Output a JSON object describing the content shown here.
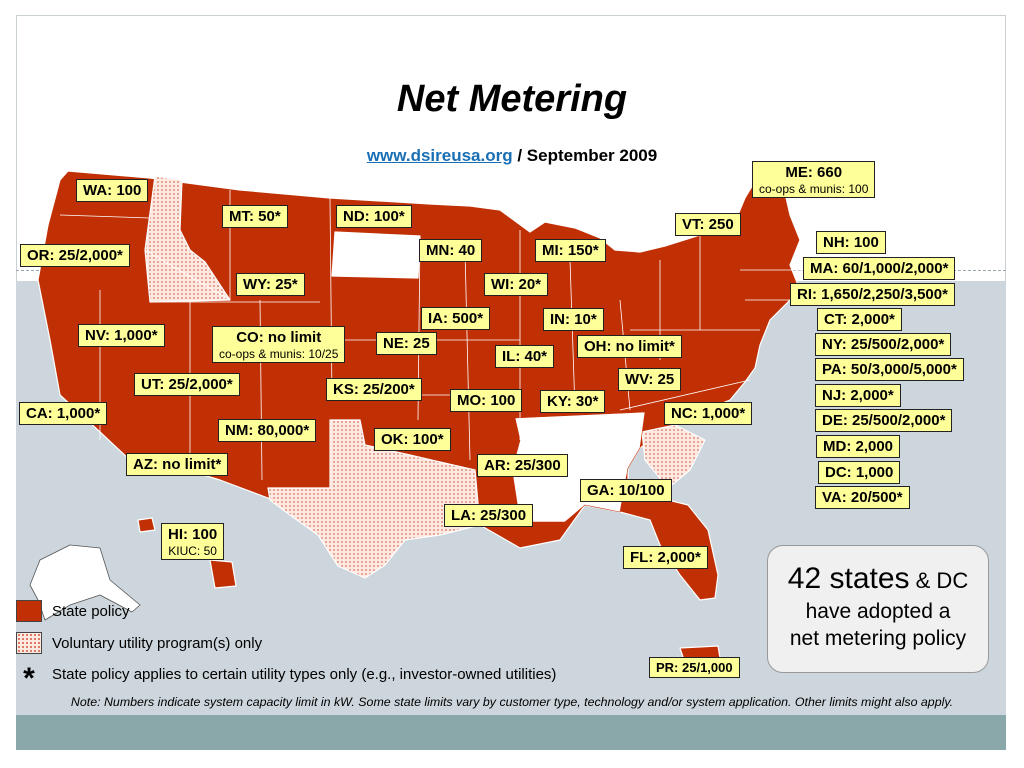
{
  "title": "Net Metering",
  "subtitle": {
    "link": "www.dsireusa.org",
    "rest": " / September 2009"
  },
  "colors": {
    "state_policy": "#c12f05",
    "voluntary": "#fbe9e2",
    "label_fill": "#ffff99",
    "background_sea": "#cdd6dc",
    "footer_bar": "#8aa8aa"
  },
  "states": {
    "WA": {
      "label": "WA: 100"
    },
    "OR": {
      "label": "OR: 25/2,000*"
    },
    "MT": {
      "label": "MT: 50*"
    },
    "ND": {
      "label": "ND: 100*"
    },
    "MN": {
      "label": "MN: 40"
    },
    "MI": {
      "label": "MI: 150*"
    },
    "WY": {
      "label": "WY: 25*"
    },
    "WI": {
      "label": "WI: 20*"
    },
    "IA": {
      "label": "IA: 500*"
    },
    "IN": {
      "label": "IN: 10*"
    },
    "NV": {
      "label": "NV: 1,000*"
    },
    "CO": {
      "label": "CO: no limit",
      "sub": "co-ops & munis: 10/25"
    },
    "NE": {
      "label": "NE: 25"
    },
    "IL": {
      "label": "IL: 40*"
    },
    "OH": {
      "label": "OH: no limit*"
    },
    "UT": {
      "label": "UT: 25/2,000*"
    },
    "KS": {
      "label": "KS: 25/200*"
    },
    "WV": {
      "label": "WV: 25"
    },
    "MO": {
      "label": "MO: 100"
    },
    "KY": {
      "label": "KY: 30*"
    },
    "CA": {
      "label": "CA: 1,000*"
    },
    "NM": {
      "label": "NM: 80,000*"
    },
    "OK": {
      "label": "OK: 100*"
    },
    "NC": {
      "label": "NC: 1,000*"
    },
    "AZ": {
      "label": "AZ: no limit*"
    },
    "AR": {
      "label": "AR: 25/300"
    },
    "GA": {
      "label": "GA: 10/100"
    },
    "LA": {
      "label": "LA: 25/300"
    },
    "HI": {
      "label": "HI: 100",
      "sub": "KIUC: 50"
    },
    "FL": {
      "label": "FL: 2,000*"
    },
    "PR": {
      "label": "PR: 25/1,000"
    },
    "ME": {
      "label": "ME: 660",
      "sub": "co-ops & munis: 100"
    },
    "VT": {
      "label": "VT: 250"
    },
    "NH": {
      "label": "NH: 100"
    },
    "MA": {
      "label": "MA: 60/1,000/2,000*"
    },
    "RI": {
      "label": "RI: 1,650/2,250/3,500*"
    },
    "CT": {
      "label": "CT: 2,000*"
    },
    "NY": {
      "label": "NY: 25/500/2,000*"
    },
    "PA": {
      "label": "PA: 50/3,000/5,000*"
    },
    "NJ": {
      "label": "NJ: 2,000*"
    },
    "DE": {
      "label": "DE: 25/500/2,000*"
    },
    "MD": {
      "label": "MD: 2,000"
    },
    "DC": {
      "label": "DC: 1,000"
    },
    "VA": {
      "label": "VA: 20/500*"
    }
  },
  "legend": {
    "state_policy": "State policy",
    "voluntary": "Voluntary utility program(s) only",
    "star_symbol": "*",
    "star_text": "State policy applies to certain utility types only (e.g., investor-owned utilities)"
  },
  "callout": {
    "line1": "42 states",
    "line1b": " & DC",
    "line2": "have adopted a",
    "line3": "net metering policy"
  },
  "note": "Note: Numbers indicate system capacity limit in kW. Some state limits vary by customer type, technology and/or system application. Other limits might also apply."
}
